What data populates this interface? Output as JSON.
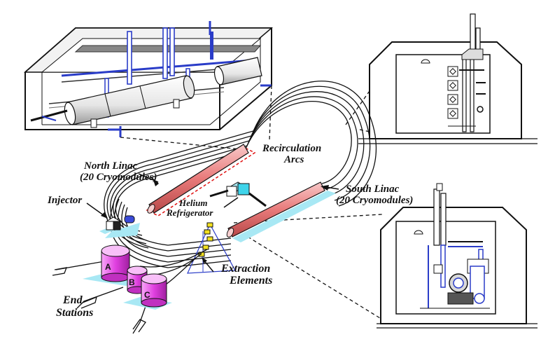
{
  "labels": {
    "north_linac_line1": "North Linac",
    "north_linac_line2": "(20 Cryomodules)",
    "recirculation_line1": "Recirculation",
    "recirculation_line2": "Arcs",
    "south_linac_line1": "South Linac",
    "south_linac_line2": "(20 Cryomodules)",
    "injector": "Injector",
    "helium_line1": "Helium",
    "helium_line2": "Refrigerator",
    "extraction_line1": "Extraction",
    "extraction_line2": "Elements",
    "end_line1": "End",
    "end_line2": "Stations"
  },
  "end_stations": [
    "A",
    "B",
    "C"
  ],
  "colors": {
    "linac": "#e87a7a",
    "end_station": "#e040e0",
    "highlight": "#3fd4ea",
    "pipe_blue": "#2a3cc8",
    "ground": "#a8e8f4",
    "dash_red": "#e01010"
  }
}
